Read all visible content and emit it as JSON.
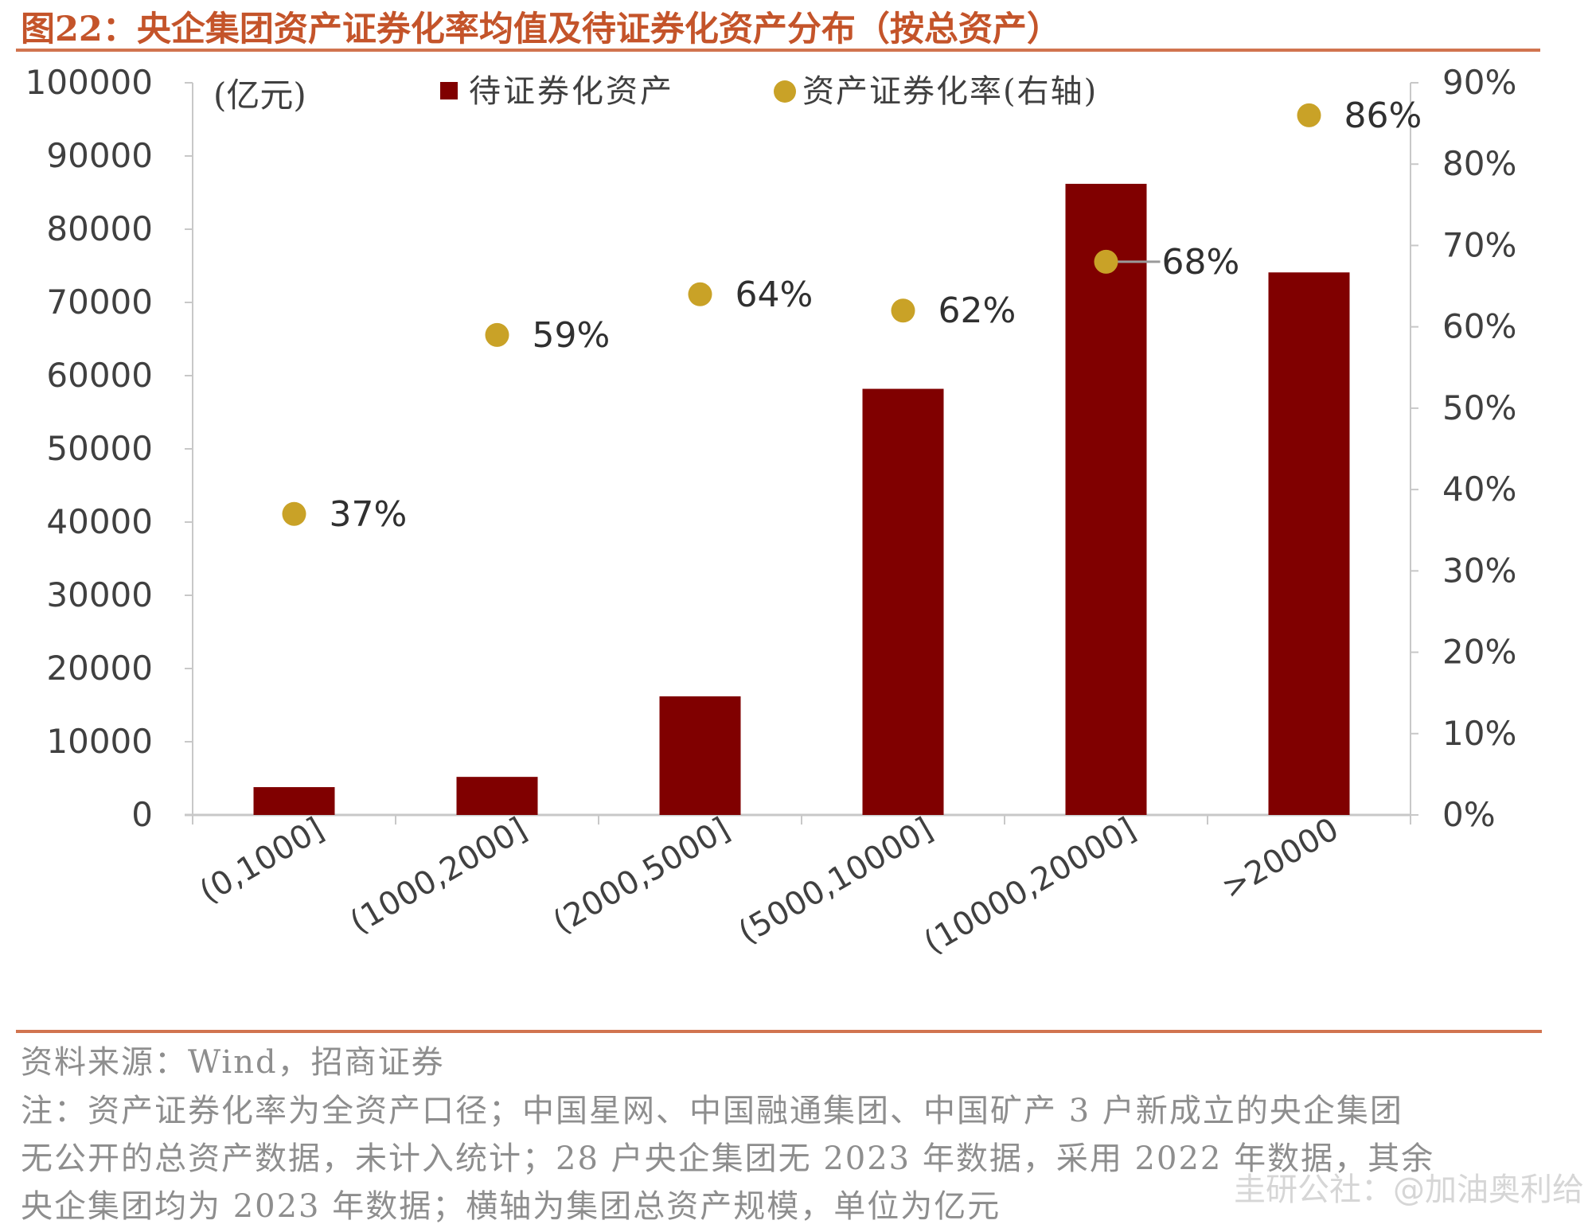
{
  "title": "图22：央企集团资产证券化率均值及待证券化资产分布（按总资产）",
  "chart_data": {
    "type": "bar",
    "categories": [
      "(0,1000]",
      "(1000,2000]",
      "(2000,5000]",
      "(5000,10000]",
      "(10000,20000]",
      ">20000"
    ],
    "unit_label": "(亿元)",
    "series": [
      {
        "name": "待证券化资产",
        "axis": "left",
        "type": "bar",
        "color": "#800000",
        "values": [
          3800,
          5200,
          16200,
          58200,
          86200,
          74100
        ]
      },
      {
        "name": "资产证券化率(右轴)",
        "axis": "right",
        "type": "scatter",
        "color": "#c9a227",
        "values": [
          37,
          59,
          64,
          62,
          68,
          86
        ],
        "labels": [
          "37%",
          "59%",
          "64%",
          "62%",
          "68%",
          "86%"
        ]
      }
    ],
    "y_left": {
      "min": 0,
      "max": 100000,
      "ticks": [
        "0",
        "10000",
        "20000",
        "30000",
        "40000",
        "50000",
        "60000",
        "70000",
        "80000",
        "90000",
        "100000"
      ]
    },
    "y_right": {
      "min": 0,
      "max": 90,
      "ticks": [
        "0%",
        "10%",
        "20%",
        "30%",
        "40%",
        "50%",
        "60%",
        "70%",
        "80%",
        "90%"
      ]
    },
    "legend_position": "top"
  },
  "source": "资料来源：Wind，招商证券",
  "note": [
    "注：资产证券化率为全资产口径；中国星网、中国融通集团、中国矿产 3 户新成立的央企集团",
    "无公开的总资产数据，未计入统计；28 户央企集团无 2023 年数据，采用 2022 年数据，其余",
    "央企集团均为 2023 年数据；横轴为集团总资产规模，单位为亿元"
  ],
  "watermark": "圭研公社：@加油奥利给",
  "colors": {
    "accent": "#c4542a",
    "bar": "#800000",
    "dot": "#c9a227"
  }
}
